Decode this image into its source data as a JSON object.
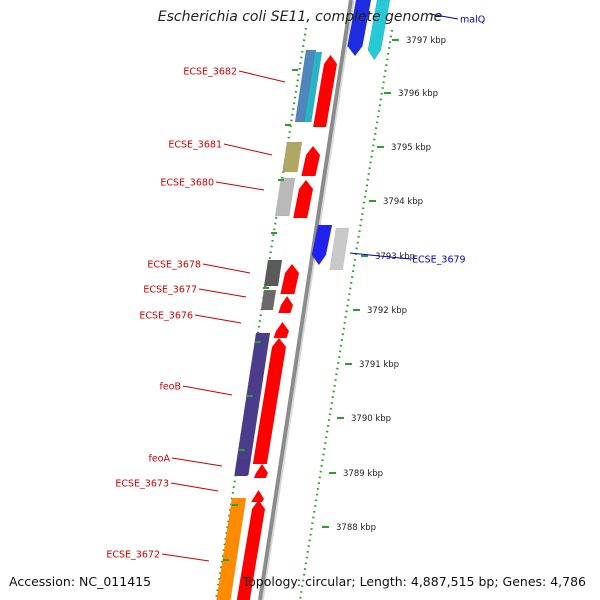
{
  "title": "Escherichia coli SE11, complete genome",
  "footer": {
    "accession": "Accession: NC_011415",
    "topology": "Topology: circular; Length: 4,887,515 bp; Genes: 4,786"
  },
  "colors": {
    "left_label": "#cc0000",
    "right_label": "#0000cc",
    "cds_forward": "#ff0000",
    "dotted_track": "#2e9e2e",
    "backbone": "#8c8c8c"
  },
  "scale_labels": [
    "3797 kbp",
    "3796 kbp",
    "3795 kbp",
    "3794 kbp",
    "3793 kbp",
    "3792 kbp",
    "3791 kbp",
    "3790 kbp",
    "3789 kbp",
    "3788 kbp"
  ],
  "left_gene_labels": [
    "ECSE_3682",
    "ECSE_3681",
    "ECSE_3680",
    "ECSE_3678",
    "ECSE_3677",
    "ECSE_3676",
    "feoB",
    "feoA",
    "ECSE_3673",
    "ECSE_3672"
  ],
  "right_gene_labels": [
    "malQ",
    "ECSE_3679"
  ],
  "feature_colors": [
    "#1f2de0",
    "#27c9d4",
    "#4f86bb",
    "#2ab3c4",
    "#b0a862",
    "#b9b9b9",
    "#2222ee",
    "#c9c9c9",
    "#5a5a5a",
    "#6a6a6a",
    "#4c3c8c",
    "#4a3a86",
    "#ff8c00"
  ]
}
